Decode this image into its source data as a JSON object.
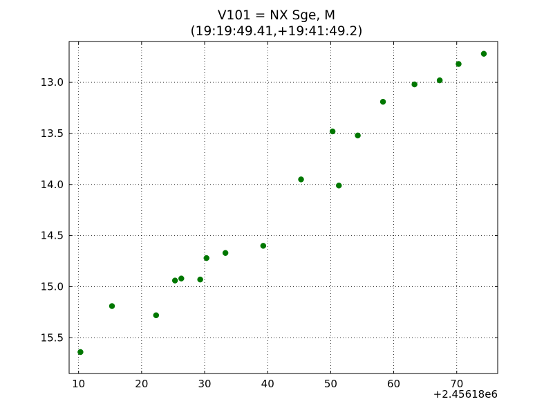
{
  "chart_data": {
    "type": "scatter",
    "title": "V101 = NX Sge, M",
    "subtitle": "(19:19:49.41,+19:41:49.2)",
    "xlabel": "",
    "ylabel": "",
    "x_offset_label": "+2.45618e6",
    "xlim": [
      8.5,
      76.5
    ],
    "ylim": [
      15.85,
      12.6
    ],
    "y_inverted": true,
    "x_ticks": [
      10,
      20,
      30,
      40,
      50,
      60,
      70
    ],
    "x_tick_labels": [
      "10",
      "20",
      "30",
      "40",
      "50",
      "60",
      "70"
    ],
    "y_ticks": [
      13.0,
      13.5,
      14.0,
      14.5,
      15.0,
      15.5
    ],
    "y_tick_labels": [
      "13.0",
      "13.5",
      "14.0",
      "14.5",
      "15.0",
      "15.5"
    ],
    "grid": true,
    "grid_style": "dotted",
    "marker_color": "#007700",
    "series": [
      {
        "points": [
          {
            "x": 10.3,
            "y": 15.64
          },
          {
            "x": 15.3,
            "y": 15.19
          },
          {
            "x": 22.3,
            "y": 15.28
          },
          {
            "x": 25.3,
            "y": 14.94
          },
          {
            "x": 26.3,
            "y": 14.92
          },
          {
            "x": 29.3,
            "y": 14.93
          },
          {
            "x": 30.3,
            "y": 14.72
          },
          {
            "x": 33.3,
            "y": 14.67
          },
          {
            "x": 39.3,
            "y": 14.6
          },
          {
            "x": 45.3,
            "y": 13.95
          },
          {
            "x": 50.3,
            "y": 13.48
          },
          {
            "x": 51.3,
            "y": 14.01
          },
          {
            "x": 54.3,
            "y": 13.52
          },
          {
            "x": 58.3,
            "y": 13.19
          },
          {
            "x": 63.3,
            "y": 13.02
          },
          {
            "x": 67.3,
            "y": 12.98
          },
          {
            "x": 70.3,
            "y": 12.82
          },
          {
            "x": 74.3,
            "y": 12.72
          }
        ]
      }
    ]
  }
}
